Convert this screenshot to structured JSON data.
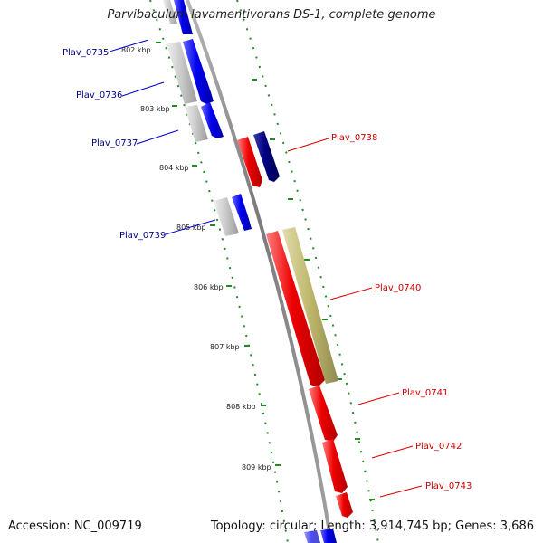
{
  "header": {
    "title": "Parvibaculum lavamentivorans DS-1, complete genome"
  },
  "footer": {
    "accession": "Accession: NC_009719",
    "stats": "Topology: circular; Length: 3,914,745 bp; Genes: 3,686"
  },
  "colors": {
    "backbone": "#8a8a8a",
    "tick": "#228b22",
    "forward_gene": "#0000ee",
    "forward_gene_dark": "#000080",
    "reverse_gene": "#ee0000",
    "neighbor_gray": "#c8c8c8",
    "neighbor_olive": "#bdb76b",
    "label_forward": "#00008b",
    "label_reverse": "#cc0000"
  },
  "kbp_labels": [
    {
      "kbp": 802,
      "text": "802 kbp"
    },
    {
      "kbp": 803,
      "text": "803 kbp"
    },
    {
      "kbp": 804,
      "text": "804 kbp"
    },
    {
      "kbp": 805,
      "text": "805 kbp"
    },
    {
      "kbp": 806,
      "text": "806 kbp"
    },
    {
      "kbp": 807,
      "text": "807 kbp"
    },
    {
      "kbp": 808,
      "text": "808 kbp"
    },
    {
      "kbp": 809,
      "text": "809 kbp"
    }
  ],
  "genes": [
    {
      "name": "Plav_0735",
      "strand": "+",
      "label": "Plav_0735"
    },
    {
      "name": "Plav_0736",
      "strand": "+",
      "label": "Plav_0736"
    },
    {
      "name": "Plav_0737",
      "strand": "+",
      "label": "Plav_0737"
    },
    {
      "name": "Plav_0738",
      "strand": "-",
      "label": "Plav_0738"
    },
    {
      "name": "Plav_0739",
      "strand": "+",
      "label": "Plav_0739"
    },
    {
      "name": "Plav_0740",
      "strand": "-",
      "label": "Plav_0740"
    },
    {
      "name": "Plav_0741",
      "strand": "-",
      "label": "Plav_0741"
    },
    {
      "name": "Plav_0742",
      "strand": "-",
      "label": "Plav_0742"
    },
    {
      "name": "Plav_0743",
      "strand": "-",
      "label": "Plav_0743"
    }
  ]
}
